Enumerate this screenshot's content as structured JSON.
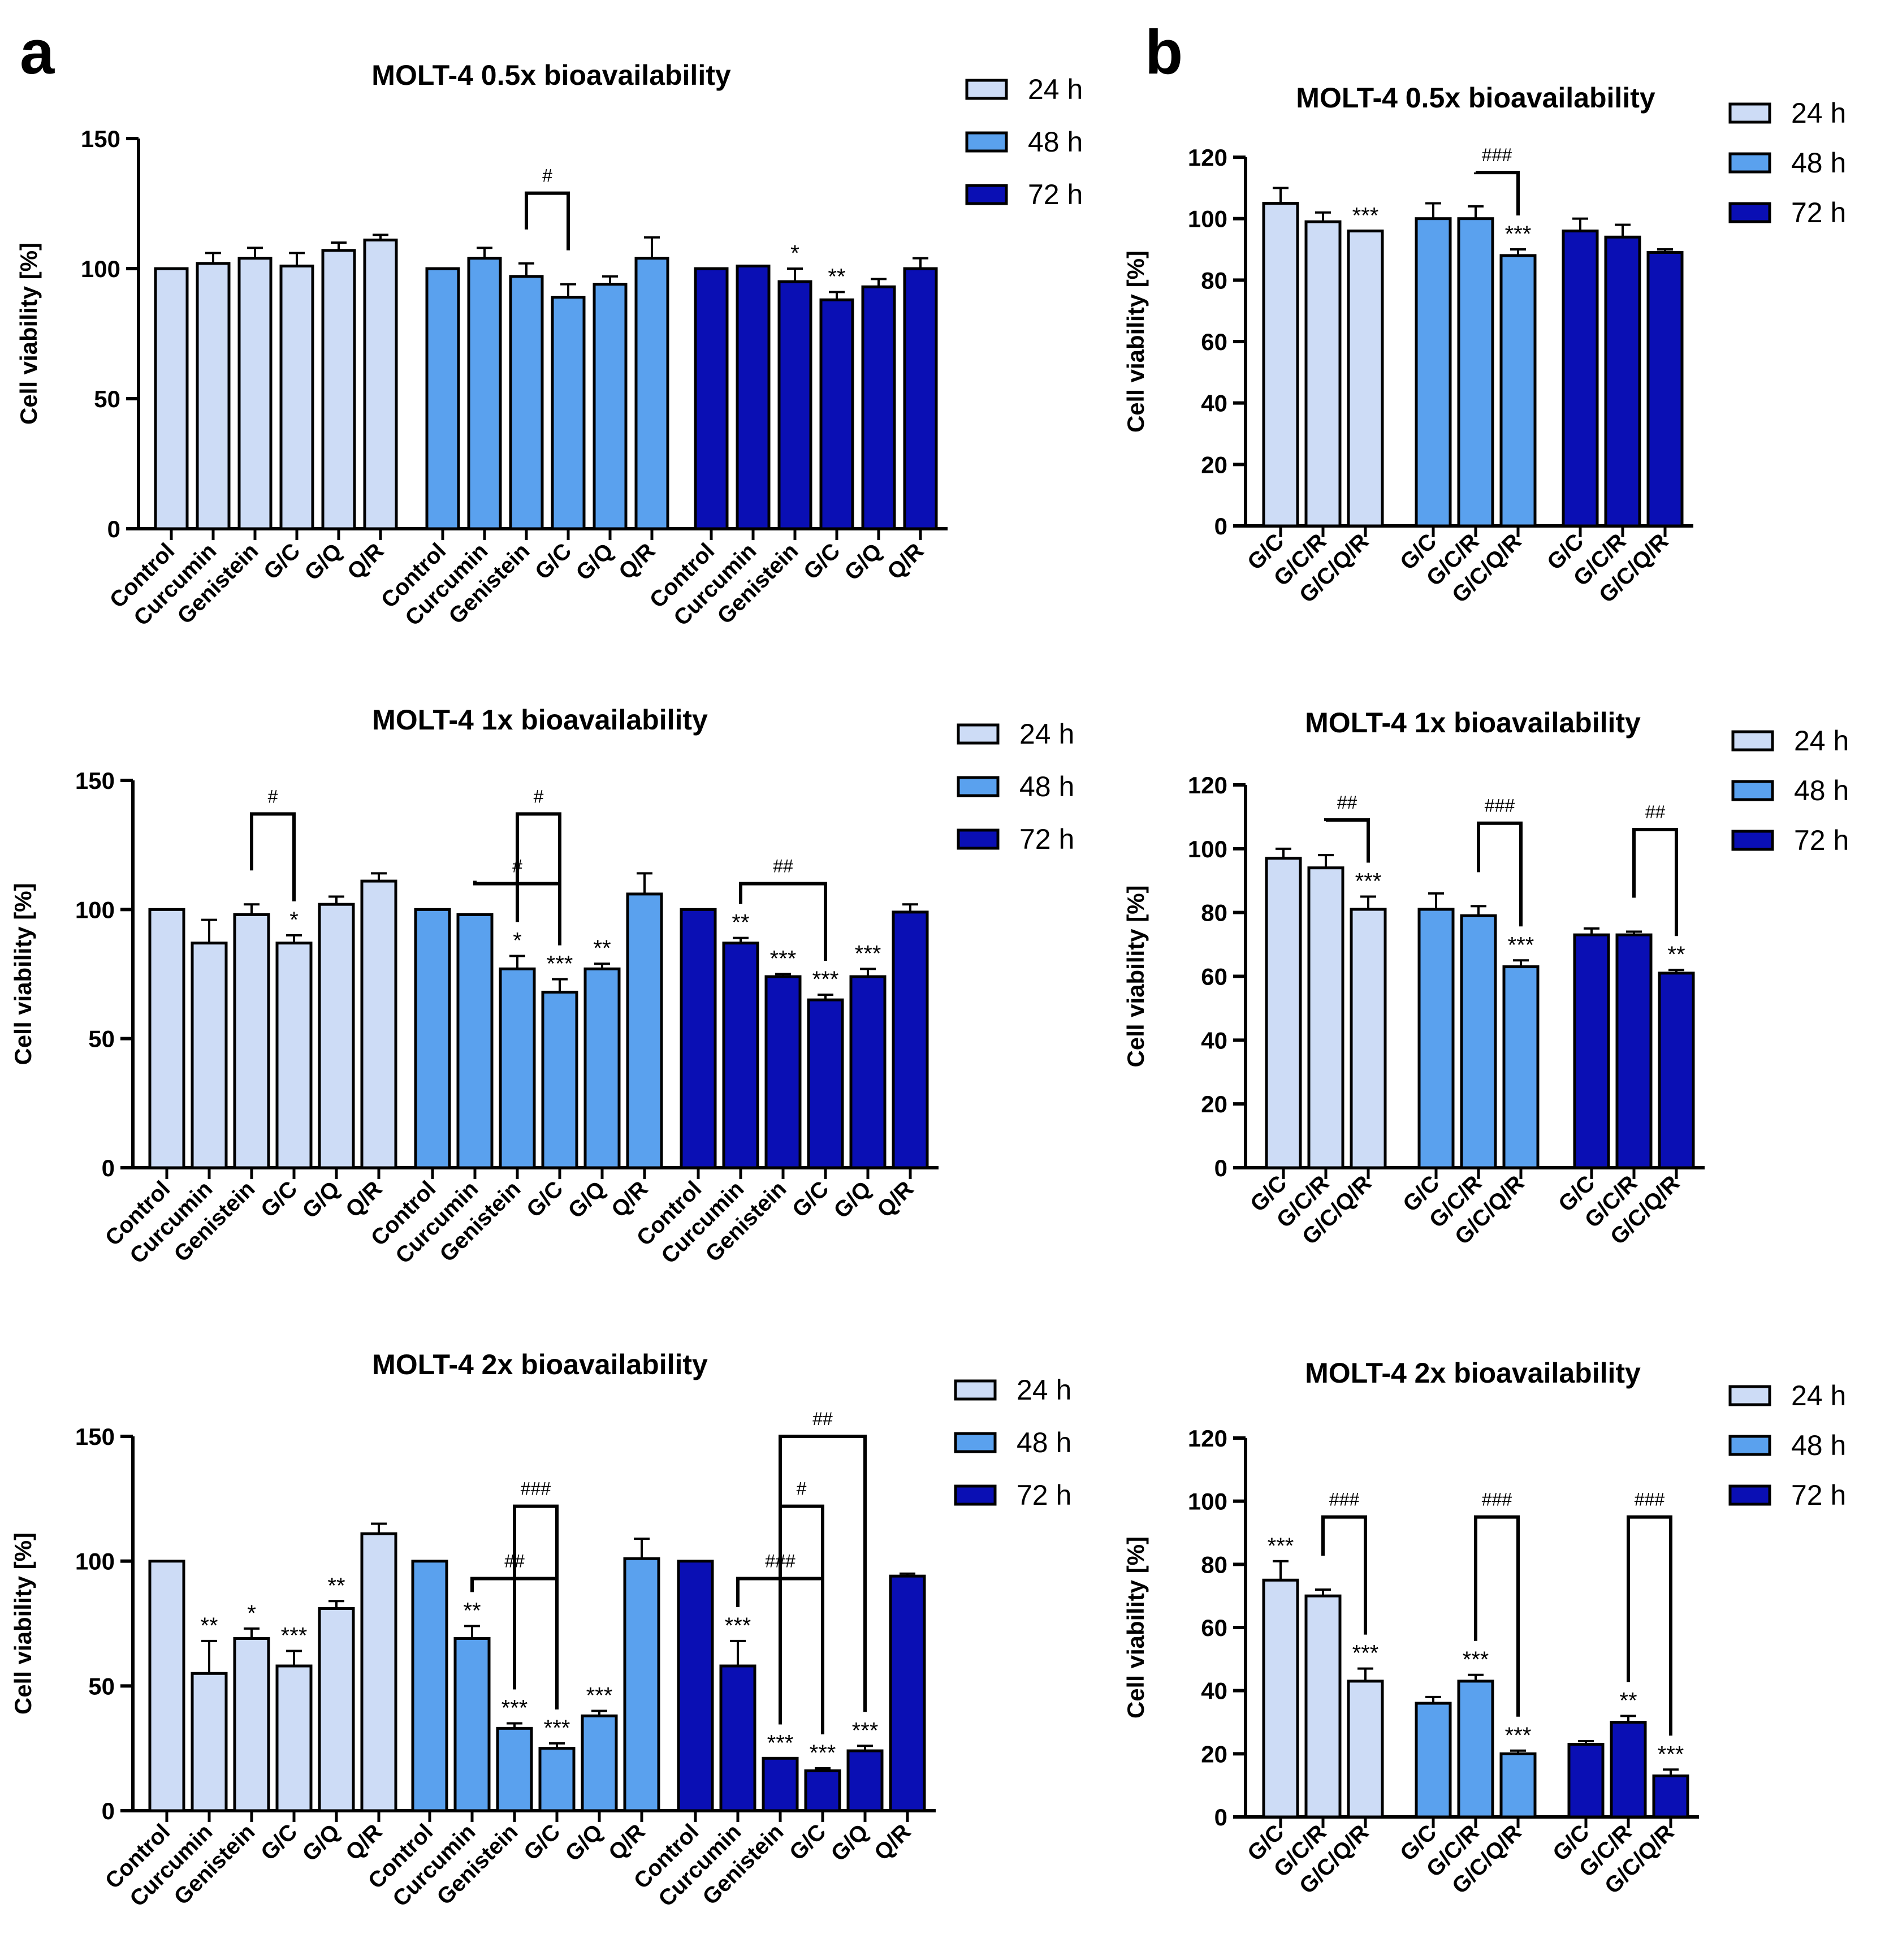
{
  "panel_labels": [
    "a",
    "b"
  ],
  "colors": {
    "24 h": "#cddcf6",
    "48 h": "#5aa1ee",
    "72 h": "#0a0fb4",
    "stroke": "#000000"
  },
  "chart_data": [
    {
      "type": "bar",
      "panel": "a",
      "title": "MOLT-4 0.5x bioavailability",
      "ylabel": "Cell viability [%]",
      "ylim": [
        0,
        150
      ],
      "yticks": [
        0,
        50,
        100,
        150
      ],
      "categories": [
        "Control",
        "Curcumin",
        "Genistein",
        "G/C",
        "G/Q",
        "Q/R"
      ],
      "legend": [
        "24 h",
        "48 h",
        "72 h"
      ],
      "series": [
        {
          "name": "24 h",
          "values": [
            100,
            102,
            104,
            101,
            107,
            111
          ],
          "errors": [
            0,
            4,
            4,
            5,
            3,
            2
          ],
          "marks": [
            "",
            "",
            "",
            "",
            "",
            ""
          ]
        },
        {
          "name": "48 h",
          "values": [
            100,
            104,
            97,
            89,
            94,
            104
          ],
          "errors": [
            0,
            4,
            5,
            5,
            3,
            8
          ],
          "marks": [
            "",
            "",
            "",
            "",
            "",
            ""
          ]
        },
        {
          "name": "72 h",
          "values": [
            100,
            101,
            95,
            88,
            93,
            100
          ],
          "errors": [
            0,
            0,
            5,
            3,
            3,
            4
          ],
          "marks": [
            "",
            "",
            "*",
            "**",
            "",
            ""
          ]
        }
      ],
      "brackets": [
        {
          "series": 1,
          "from": 2,
          "to": 3,
          "y": 129,
          "label": "#"
        }
      ]
    },
    {
      "type": "bar",
      "panel": "a",
      "title": "MOLT-4 1x bioavailability",
      "ylabel": "Cell viability [%]",
      "ylim": [
        0,
        150
      ],
      "yticks": [
        0,
        50,
        100,
        150
      ],
      "categories": [
        "Control",
        "Curcumin",
        "Genistein",
        "G/C",
        "G/Q",
        "Q/R"
      ],
      "legend": [
        "24 h",
        "48 h",
        "72 h"
      ],
      "series": [
        {
          "name": "24 h",
          "values": [
            100,
            87,
            98,
            87,
            102,
            111
          ],
          "errors": [
            0,
            9,
            4,
            3,
            3,
            3
          ],
          "marks": [
            "",
            "",
            "",
            "*",
            "",
            ""
          ]
        },
        {
          "name": "48 h",
          "values": [
            100,
            98,
            77,
            68,
            77,
            106
          ],
          "errors": [
            0,
            0,
            5,
            5,
            2,
            8
          ],
          "marks": [
            "",
            "",
            "*",
            "***",
            "**",
            ""
          ]
        },
        {
          "name": "72 h",
          "values": [
            100,
            87,
            74,
            65,
            74,
            99
          ],
          "errors": [
            0,
            2,
            1,
            2,
            3,
            3
          ],
          "marks": [
            "",
            "**",
            "***",
            "***",
            "***",
            ""
          ]
        }
      ],
      "brackets": [
        {
          "series": 0,
          "from": 2,
          "to": 3,
          "y": 137,
          "label": "#"
        },
        {
          "series": 1,
          "from": 2,
          "to": 3,
          "y": 137,
          "label": "#"
        },
        {
          "series": 1,
          "from": 1,
          "to": 3,
          "y": 110,
          "label": "#"
        },
        {
          "series": 2,
          "from": 1,
          "to": 3,
          "y": 110,
          "label": "##"
        }
      ]
    },
    {
      "type": "bar",
      "panel": "a",
      "title": "MOLT-4 2x bioavailability",
      "ylabel": "Cell viability [%]",
      "ylim": [
        0,
        150
      ],
      "yticks": [
        0,
        50,
        100,
        150
      ],
      "categories": [
        "Control",
        "Curcumin",
        "Genistein",
        "G/C",
        "G/Q",
        "Q/R"
      ],
      "legend": [
        "24 h",
        "48 h",
        "72 h"
      ],
      "series": [
        {
          "name": "24 h",
          "values": [
            100,
            55,
            69,
            58,
            81,
            111
          ],
          "errors": [
            0,
            13,
            4,
            6,
            3,
            4
          ],
          "marks": [
            "",
            "**",
            "*",
            "***",
            "**",
            ""
          ]
        },
        {
          "name": "48 h",
          "values": [
            100,
            69,
            33,
            25,
            38,
            101
          ],
          "errors": [
            0,
            5,
            2,
            2,
            2,
            8
          ],
          "marks": [
            "",
            "**",
            "***",
            "***",
            "***",
            ""
          ]
        },
        {
          "name": "72 h",
          "values": [
            100,
            58,
            21,
            16,
            24,
            94
          ],
          "errors": [
            0,
            10,
            0,
            1,
            2,
            1
          ],
          "marks": [
            "",
            "***",
            "***",
            "***",
            "***",
            ""
          ]
        }
      ],
      "brackets": [
        {
          "series": 1,
          "from": 2,
          "to": 3,
          "y": 122,
          "label": "###"
        },
        {
          "series": 1,
          "from": 1,
          "to": 3,
          "y": 93,
          "label": "##"
        },
        {
          "series": 2,
          "from": 2,
          "to": 3,
          "y": 122,
          "label": "#"
        },
        {
          "series": 2,
          "from": 1,
          "to": 3,
          "y": 93,
          "label": "###"
        },
        {
          "series": 2,
          "from": 2,
          "to": 4,
          "y": 150,
          "label": "##"
        }
      ]
    },
    {
      "type": "bar",
      "panel": "b",
      "title": "MOLT-4 0.5x bioavailability",
      "ylabel": "Cell viability [%]",
      "ylim": [
        0,
        120
      ],
      "yticks": [
        0,
        20,
        40,
        60,
        80,
        100,
        120
      ],
      "categories": [
        "G/C",
        "G/C/R",
        "G/C/Q/R"
      ],
      "legend": [
        "24 h",
        "48 h",
        "72 h"
      ],
      "series": [
        {
          "name": "24 h",
          "values": [
            105,
            99,
            96
          ],
          "errors": [
            5,
            3,
            0
          ],
          "marks": [
            "",
            "",
            "***"
          ]
        },
        {
          "name": "48 h",
          "values": [
            100,
            100,
            88
          ],
          "errors": [
            5,
            4,
            2
          ],
          "marks": [
            "",
            "",
            "***"
          ]
        },
        {
          "name": "72 h",
          "values": [
            96,
            94,
            89
          ],
          "errors": [
            4,
            4,
            1
          ],
          "marks": [
            "",
            "",
            ""
          ]
        }
      ],
      "brackets": [
        {
          "series": 1,
          "from": 1,
          "to": 2,
          "y": 115,
          "label": "###"
        }
      ]
    },
    {
      "type": "bar",
      "panel": "b",
      "title": "MOLT-4 1x bioavailability",
      "ylabel": "Cell viability [%]",
      "ylim": [
        0,
        120
      ],
      "yticks": [
        0,
        20,
        40,
        60,
        80,
        100,
        120
      ],
      "categories": [
        "G/C",
        "G/C/R",
        "G/C/Q/R"
      ],
      "legend": [
        "24 h",
        "48 h",
        "72 h"
      ],
      "series": [
        {
          "name": "24 h",
          "values": [
            97,
            94,
            81
          ],
          "errors": [
            3,
            4,
            4
          ],
          "marks": [
            "",
            "",
            "***"
          ]
        },
        {
          "name": "48 h",
          "values": [
            81,
            79,
            63
          ],
          "errors": [
            5,
            3,
            2
          ],
          "marks": [
            "",
            "",
            "***"
          ]
        },
        {
          "name": "72 h",
          "values": [
            73,
            73,
            61
          ],
          "errors": [
            2,
            1,
            1
          ],
          "marks": [
            "",
            "",
            "**"
          ]
        }
      ],
      "brackets": [
        {
          "series": 0,
          "from": 1,
          "to": 2,
          "y": 109,
          "label": "##"
        },
        {
          "series": 1,
          "from": 1,
          "to": 2,
          "y": 108,
          "label": "###"
        },
        {
          "series": 2,
          "from": 1,
          "to": 2,
          "y": 106,
          "label": "##"
        }
      ]
    },
    {
      "type": "bar",
      "panel": "b",
      "title": "MOLT-4 2x bioavailability",
      "ylabel": "Cell viability [%]",
      "ylim": [
        0,
        120
      ],
      "yticks": [
        0,
        20,
        40,
        60,
        80,
        100,
        120
      ],
      "categories": [
        "G/C",
        "G/C/R",
        "G/C/Q/R"
      ],
      "legend": [
        "24 h",
        "48 h",
        "72 h"
      ],
      "series": [
        {
          "name": "24 h",
          "values": [
            75,
            70,
            43
          ],
          "errors": [
            6,
            2,
            4
          ],
          "marks": [
            "***",
            "",
            "***"
          ]
        },
        {
          "name": "48 h",
          "values": [
            36,
            43,
            20
          ],
          "errors": [
            2,
            2,
            1
          ],
          "marks": [
            "",
            "***",
            "***"
          ]
        },
        {
          "name": "72 h",
          "values": [
            23,
            30,
            13
          ],
          "errors": [
            1,
            2,
            2
          ],
          "marks": [
            "",
            "**",
            "***"
          ]
        }
      ],
      "brackets": [
        {
          "series": 0,
          "from": 1,
          "to": 2,
          "y": 95,
          "label": "###"
        },
        {
          "series": 1,
          "from": 1,
          "to": 2,
          "y": 95,
          "label": "###"
        },
        {
          "series": 2,
          "from": 1,
          "to": 2,
          "y": 95,
          "label": "###"
        }
      ]
    }
  ]
}
